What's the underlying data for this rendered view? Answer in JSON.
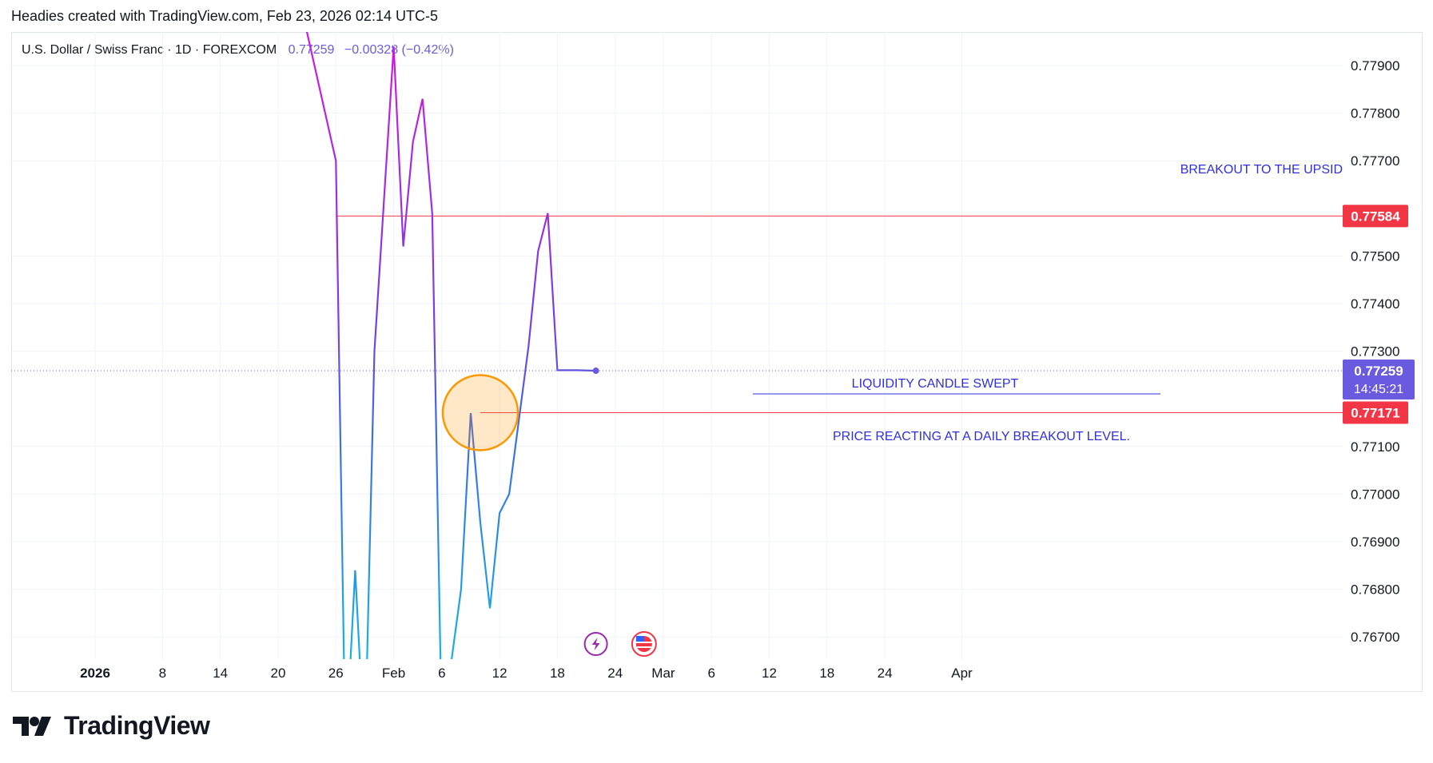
{
  "header": {
    "text": "Headies created with TradingView.com, Feb 23, 2026 02:14 UTC-5"
  },
  "legend": {
    "symbol": "U.S. Dollar / Swiss Franc · 1D · FOREXCOM",
    "last": "0.77259",
    "change": "−0.00328 (−0.42%)"
  },
  "footer": {
    "brand": "TradingView"
  },
  "colors": {
    "line_top": "#b31ee0",
    "line_bottom": "#1fa3e3",
    "level": "#f23645",
    "current": "#6a5ae0",
    "annotation": "#2f2fe0",
    "circle": "#ff9800"
  },
  "chart_data": {
    "type": "line",
    "title": "U.S. Dollar / Swiss Franc · 1D · FOREXCOM",
    "x_tick_labels": [
      "2026",
      "8",
      "14",
      "20",
      "26",
      "Feb",
      "6",
      "12",
      "18",
      "24",
      "Mar",
      "6",
      "12",
      "18",
      "24",
      "Apr"
    ],
    "x_ticks": [
      "2026-01-01",
      "2026-01-08",
      "2026-01-14",
      "2026-01-20",
      "2026-01-26",
      "2026-02-01",
      "2026-02-06",
      "2026-02-12",
      "2026-02-18",
      "2026-02-24",
      "2026-03-01",
      "2026-03-06",
      "2026-03-12",
      "2026-03-18",
      "2026-03-24",
      "2026-04-01"
    ],
    "y_tick_labels": [
      "0.77900",
      "0.77800",
      "0.77700",
      "0.77500",
      "0.77400",
      "0.77300",
      "0.77100",
      "0.77000",
      "0.76900",
      "0.76800",
      "0.76700"
    ],
    "y_ticks": [
      0.779,
      0.778,
      0.777,
      0.775,
      0.774,
      0.773,
      0.771,
      0.77,
      0.769,
      0.768,
      0.767
    ],
    "ylim": [
      0.7666,
      0.7803
    ],
    "grid": true,
    "series": [
      {
        "x": [
          "2026-01-22",
          "2026-01-23",
          "2026-01-26",
          "2026-01-27",
          "2026-01-28",
          "2026-01-29",
          "2026-01-30",
          "2026-02-01",
          "2026-02-02",
          "2026-02-03",
          "2026-02-04",
          "2026-02-05",
          "2026-02-06",
          "2026-02-08",
          "2026-02-09",
          "2026-02-10",
          "2026-02-11",
          "2026-02-12",
          "2026-02-13",
          "2026-02-15",
          "2026-02-16",
          "2026-02-17",
          "2026-02-18",
          "2026-02-19",
          "2026-02-20",
          "2026-02-22"
        ],
        "values": [
          0.7825,
          0.7797,
          0.777,
          0.7645,
          0.7684,
          0.7645,
          0.773,
          0.7794,
          0.7752,
          0.7774,
          0.7783,
          0.7759,
          0.765,
          0.768,
          0.7717,
          0.7694,
          0.7676,
          0.7696,
          0.77,
          0.7731,
          0.7751,
          0.7759,
          0.7726,
          0.7726,
          0.7726,
          0.77259
        ]
      }
    ],
    "levels": [
      {
        "value": 0.77584,
        "label": "0.77584"
      },
      {
        "value": 0.77171,
        "label": "0.77171"
      }
    ],
    "current_price": {
      "value": 0.77259,
      "label": "0.77259",
      "countdown": "14:45:21"
    },
    "annotations": [
      {
        "text": "BREAKOUT TO THE UPSID"
      },
      {
        "text": "LIQUIDITY CANDLE SWEPT"
      },
      {
        "text": "PRICE REACTING AT A DAILY BREAKOUT LEVEL."
      }
    ]
  }
}
